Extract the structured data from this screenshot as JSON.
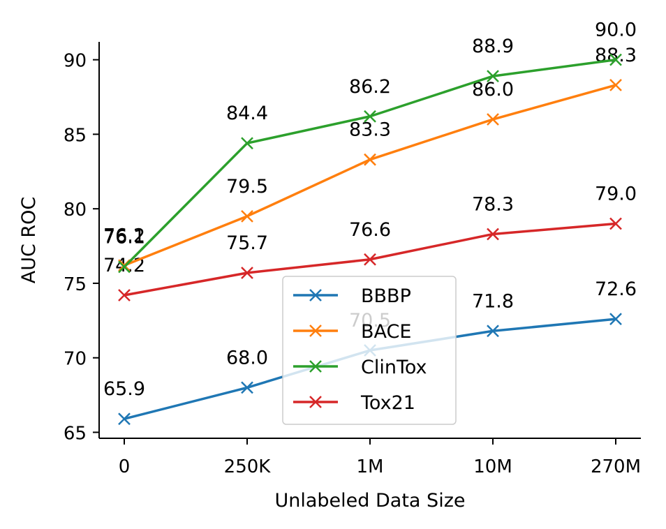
{
  "chart_data": {
    "type": "line",
    "title": "",
    "xlabel": "Unlabeled Data Size",
    "ylabel": "AUC ROC",
    "categories": [
      "0",
      "250K",
      "1M",
      "10M",
      "270M"
    ],
    "ylim": [
      64.6,
      91.2
    ],
    "yticks": [
      65,
      70,
      75,
      80,
      85,
      90
    ],
    "grid": false,
    "legend_position": "lower-center",
    "series": [
      {
        "name": "BBBP",
        "color": "#1f77b4",
        "values": [
          65.9,
          68.0,
          70.5,
          71.8,
          72.6
        ],
        "labels": [
          "65.9",
          "68.0",
          "70.5",
          "71.8",
          "72.6"
        ]
      },
      {
        "name": "BACE",
        "color": "#ff7f0e",
        "values": [
          76.2,
          79.5,
          83.3,
          86.0,
          88.3
        ],
        "labels": [
          "76.2",
          "79.5",
          "83.3",
          "86.0",
          "88.3"
        ]
      },
      {
        "name": "ClinTox",
        "color": "#2ca02c",
        "values": [
          76.1,
          84.4,
          86.2,
          88.9,
          90.0
        ],
        "labels": [
          "76.1",
          "84.4",
          "86.2",
          "88.9",
          "90.0"
        ]
      },
      {
        "name": "Tox21",
        "color": "#d62728",
        "values": [
          74.2,
          75.7,
          76.6,
          78.3,
          79.0
        ],
        "labels": [
          "74.2",
          "75.7",
          "76.6",
          "78.3",
          "79.0"
        ]
      }
    ]
  }
}
